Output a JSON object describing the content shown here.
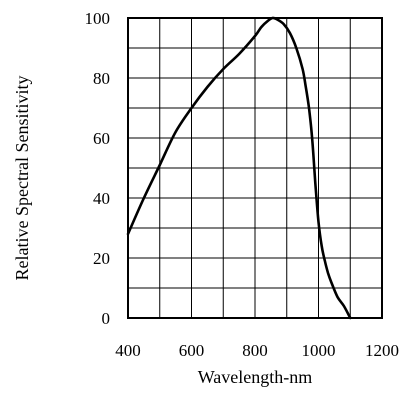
{
  "chart_data": {
    "type": "line",
    "title": "",
    "xlabel": "Wavelength-nm",
    "ylabel": "Relative Spectral Sensitivity",
    "xlim": [
      400,
      1200
    ],
    "ylim": [
      0,
      100
    ],
    "x_ticks": [
      "400",
      "600",
      "800",
      "1000",
      "1200"
    ],
    "y_ticks": [
      "0",
      "20",
      "40",
      "60",
      "80",
      "100"
    ],
    "grid": true,
    "series": [
      {
        "x": [
          400,
          450,
          500,
          550,
          600,
          650,
          700,
          750,
          800,
          820,
          840,
          855,
          870,
          890,
          910,
          930,
          950,
          960,
          970,
          980,
          990,
          1000,
          1010,
          1020,
          1030,
          1040,
          1060,
          1080,
          1100
        ],
        "y": [
          28,
          40,
          51,
          62,
          70,
          77,
          83,
          88,
          94,
          97,
          99,
          100,
          99.5,
          98,
          95,
          90,
          83,
          77,
          70,
          60,
          45,
          32,
          24,
          19,
          15,
          12,
          7,
          4,
          0
        ]
      }
    ]
  }
}
